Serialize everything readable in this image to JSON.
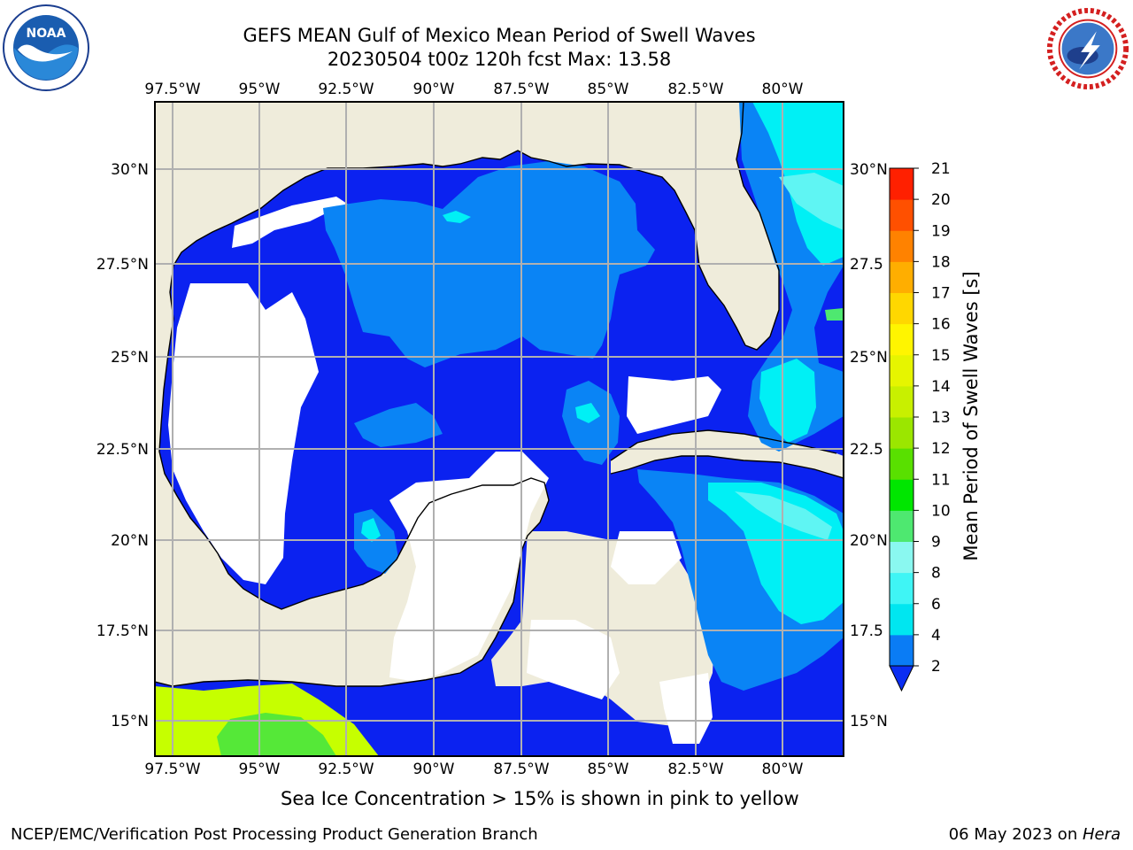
{
  "title": {
    "line1": "GEFS MEAN Gulf of Mexico Mean Period of Swell Waves",
    "line2": "20230504 t00z 120h fcst   Max: 13.58"
  },
  "axes": {
    "lon_labels": [
      "97.5°W",
      "95°W",
      "92.5°W",
      "90°W",
      "87.5°W",
      "85°W",
      "82.5°W",
      "80°W"
    ],
    "lat_labels_left": [
      "30°N",
      "27.5°N",
      "25°N",
      "22.5°N",
      "20°N",
      "17.5°N",
      "15°N"
    ],
    "lat_labels_right": [
      "30°N",
      "27.5",
      "25°N",
      "22.5",
      "20°N",
      "17.5",
      "15°N"
    ]
  },
  "colorbar": {
    "label": "Mean Period of Swell Waves [s]",
    "ticks": [
      "2",
      "4",
      "6",
      "8",
      "9",
      "10",
      "11",
      "12",
      "13",
      "14",
      "15",
      "16",
      "17",
      "18",
      "19",
      "20",
      "21"
    ],
    "colors": [
      "#0b2ef2",
      "#0a7cf5",
      "#00e6f0",
      "#3ff5f5",
      "#8af8f0",
      "#4ee870",
      "#00e600",
      "#59e000",
      "#9be600",
      "#c8f000",
      "#e6f500",
      "#fff500",
      "#ffd700",
      "#ffae00",
      "#ff8200",
      "#ff5000",
      "#ff2000",
      "#ff0000"
    ],
    "extend": "min"
  },
  "map_colors": {
    "land": "#efecdb",
    "water_dark": "#0b22f0",
    "water_med": "#0a84f5",
    "water_cyan": "#00f0f5",
    "water_light": "#5ff5f3",
    "green_yellow": "#c6ff00",
    "green": "#55e838",
    "grid": "#b0b0b0"
  },
  "caption": "Sea Ice Concentration > 15% is shown in pink to yellow",
  "footer": {
    "org": "NCEP/EMC/Verification Post Processing Product Generation Branch",
    "date": "06 May 2023 on ",
    "machine": "Hera"
  },
  "logos": {
    "noaa_text": "NOAA",
    "nws_text": "NATIONAL WEATHER SERVICE"
  }
}
